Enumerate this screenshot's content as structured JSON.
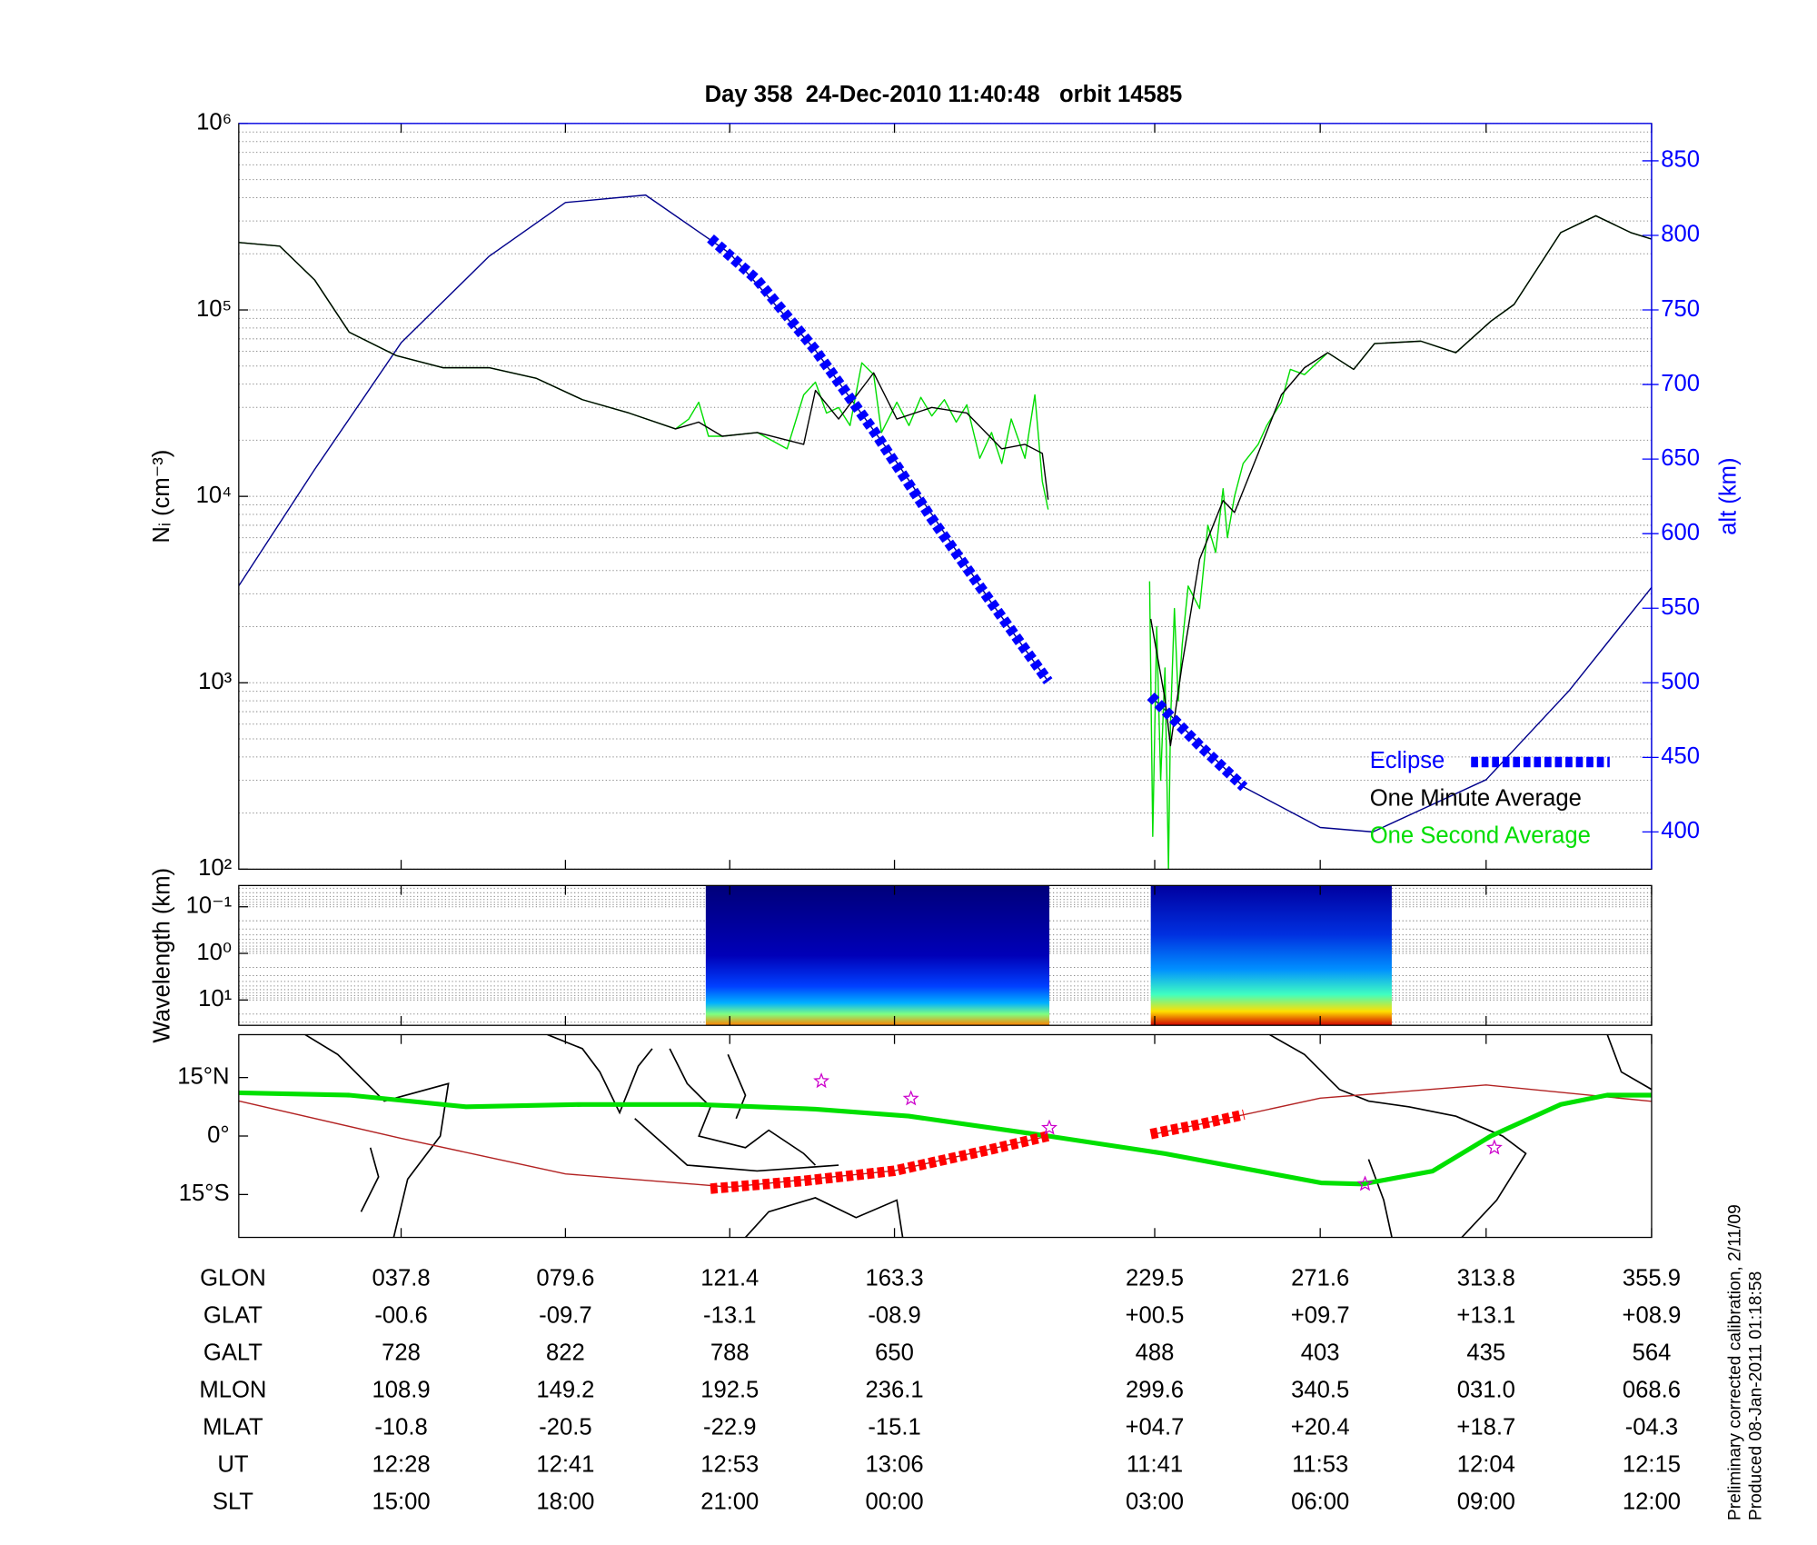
{
  "chart_data": [
    {
      "type": "line",
      "title": "Day 358  24-Dec-2010 11:40:48   orbit 14585",
      "ylabel": "Nᵢ (cm⁻³)",
      "y2label": "alt (km)",
      "y2_color": "#0000ff",
      "xlim": [
        -3.5,
        355.9
      ],
      "xticks": [
        37.8,
        79.6,
        121.4,
        163.3,
        229.5,
        271.6,
        313.8,
        355.9
      ],
      "ylim": [
        100,
        1000000
      ],
      "ylog": true,
      "grid": true,
      "yticks": [
        {
          "value": 100,
          "label": "10²"
        },
        {
          "value": 1000,
          "label": "10³"
        },
        {
          "value": 10000,
          "label": "10⁴"
        },
        {
          "value": 100000,
          "label": "10⁵"
        },
        {
          "value": 1000000,
          "label": "10⁶"
        }
      ],
      "y2lim": [
        375,
        875
      ],
      "y2ticks": [
        400,
        450,
        500,
        550,
        600,
        650,
        700,
        750,
        800,
        850
      ],
      "legend": "lower right",
      "series": [
        {
          "name": "Eclipse",
          "color": "#0000ff",
          "axis": "y2",
          "linestyle": "dashed",
          "linewidth": "thick",
          "x": [
            116.5,
            128.4,
            143.2,
            158,
            172.8,
            187.6,
            202.4,
            214.3,
            228.5,
            240.9,
            252.2
          ],
          "values": [
            798,
            770,
            723,
            669,
            610,
            555,
            501,
            null,
            491,
            458,
            430
          ]
        },
        {
          "name": "One Minute Average",
          "color": "#000000",
          "linestyle": "solid",
          "linewidth": "thin",
          "x": [
            -3.5,
            6.9,
            15.8,
            24.6,
            36.5,
            48.4,
            60.2,
            72.1,
            83.9,
            95.8,
            107.6,
            113.5,
            119.5,
            128.4,
            140.2,
            143.2,
            149.1,
            158,
            163.9,
            172.8,
            181.7,
            190.6,
            196.5,
            200.9,
            202.4,
            214.3,
            228.5,
            232.1,
            233.5,
            236.5,
            240.9,
            246.9,
            249.8,
            255.8,
            261.7,
            267.6,
            273.5,
            280.1,
            285.4,
            297.2,
            306.1,
            315,
            320.9,
            332.8,
            341.7,
            350.6,
            355.9
          ],
          "values": [
            230000,
            220000,
            145000,
            76000,
            57000,
            49000,
            49000,
            43000,
            33000,
            28000,
            23000,
            25000,
            21000,
            22000,
            19000,
            37000,
            26000,
            46000,
            26000,
            30000,
            28000,
            18000,
            19000,
            17000,
            9600,
            null,
            2200,
            820,
            460,
            1260,
            4600,
            9500,
            8200,
            17000,
            35000,
            49000,
            59000,
            48000,
            66000,
            68000,
            59000,
            87000,
            107000,
            260000,
            320000,
            260000,
            240000
          ]
        },
        {
          "name": "One Second Average",
          "color": "#00dd00",
          "linestyle": "solid",
          "linewidth": "thin",
          "x": [
            -3.5,
            6.9,
            15.8,
            24.6,
            36.5,
            48.4,
            60.2,
            72.1,
            83.9,
            95.8,
            107.6,
            111,
            113.5,
            116,
            119.5,
            128.4,
            136,
            140.2,
            143.2,
            146,
            149.1,
            152,
            155,
            158,
            160,
            163.9,
            167,
            170,
            172.8,
            176,
            179,
            181.7,
            185,
            188,
            190.6,
            193,
            196.5,
            199,
            200.9,
            202.4,
            214.3,
            228.2,
            229,
            230,
            231,
            232.1,
            233,
            233.5,
            234.5,
            235.5,
            236.5,
            238,
            240.9,
            243,
            245,
            246.9,
            248,
            249.8,
            252,
            255.8,
            258,
            261.7,
            264,
            267.6,
            273.5,
            280.1,
            285.4,
            297.2,
            306.1,
            315,
            320.9,
            332.8,
            341.7,
            350.6,
            355.9
          ],
          "values": [
            230000,
            220000,
            145000,
            76000,
            57000,
            49000,
            49000,
            43000,
            33000,
            28000,
            23000,
            26000,
            32000,
            21000,
            21000,
            22000,
            18000,
            35000,
            41000,
            28000,
            30000,
            24000,
            52000,
            45000,
            22000,
            32000,
            24000,
            34000,
            27000,
            33000,
            25000,
            31000,
            16000,
            22000,
            15000,
            26000,
            16000,
            35000,
            12000,
            8500,
            null,
            3500,
            150,
            2000,
            300,
            1200,
            100,
            600,
            2500,
            800,
            1600,
            3300,
            2500,
            7000,
            5000,
            11000,
            6000,
            10000,
            15000,
            19000,
            24000,
            32000,
            48000,
            45000,
            59000,
            48000,
            66000,
            68000,
            59000,
            87000,
            107000,
            260000,
            320000,
            260000,
            240000
          ]
        },
        {
          "color": "#00008b",
          "axis": "y2",
          "linestyle": "solid",
          "linewidth": "thin",
          "x": [
            -3.5,
            15.8,
            37.8,
            60.2,
            79.6,
            100,
            121.4,
            143.2,
            163.3,
            187.6,
            202.4,
            214.3,
            228.5,
            252.2,
            271.6,
            285,
            313.8,
            335,
            355.9
          ],
          "values": [
            565,
            643,
            728,
            786,
            822,
            827,
            788,
            723,
            650,
            555,
            501,
            null,
            491,
            430,
            403,
            400,
            435,
            495,
            564
          ]
        }
      ]
    },
    {
      "type": "spectrogram",
      "ylabel": "Wavelength (km)",
      "xlim": [
        -3.5,
        355.9
      ],
      "xticks": [
        37.8,
        79.6,
        121.4,
        163.3,
        229.5,
        271.6,
        313.8,
        355.9
      ],
      "ylim": [
        0.035,
        35
      ],
      "ylog": true,
      "yreversed": true,
      "grid": true,
      "yticks": [
        {
          "value": 0.1,
          "label": "10⁻¹"
        },
        {
          "value": 1,
          "label": "10⁰"
        },
        {
          "value": 10,
          "label": "10¹"
        }
      ],
      "segments": [
        [
          115.3,
          202.7
        ],
        [
          228.5,
          289.8
        ]
      ]
    },
    {
      "type": "map",
      "xlim": [
        -3.5,
        355.9
      ],
      "xticks": [
        37.8,
        79.6,
        121.4,
        163.3,
        229.5,
        271.6,
        313.8,
        355.9
      ],
      "ylim": [
        -26,
        26
      ],
      "yticks": [
        {
          "value": -15,
          "label": "15°S"
        },
        {
          "value": 0,
          "label": "0°"
        },
        {
          "value": 15,
          "label": "15°N"
        }
      ],
      "series": [
        {
          "color": "#b22222",
          "linestyle": "solid",
          "linewidth": "thin",
          "x": [
            -3.5,
            37.8,
            79.6,
            121.4,
            163.3,
            202.4,
            214.3,
            229.5,
            271.6,
            313.8,
            355.9
          ],
          "values": [
            9,
            -0.6,
            -9.7,
            -13.1,
            -8.9,
            0,
            null,
            0.5,
            9.7,
            13.1,
            8.9
          ]
        },
        {
          "color": "#00e000",
          "linestyle": "solid",
          "linewidth": "thick",
          "x": [
            -3.5,
            24.6,
            54.3,
            83.9,
            113.5,
            143.2,
            166.9,
            202.4,
            232.1,
            271.8,
            282.4,
            300.2,
            315,
            332.8,
            344.6,
            355.9
          ],
          "values": [
            11.1,
            10.5,
            7.5,
            8.1,
            8.1,
            6.9,
            5.1,
            0,
            -4.5,
            -12,
            -12.3,
            -9,
            0,
            8.1,
            10.5,
            10.5
          ]
        },
        {
          "color": "#ff0000",
          "linestyle": "dashed",
          "linewidth": "thick",
          "x": [
            116.5,
            140.2,
            163.3,
            187.6,
            202.4,
            214.3,
            228.5,
            240.9,
            252.2
          ],
          "values": [
            -13.5,
            -11.5,
            -8.9,
            -3.5,
            0,
            null,
            0.5,
            3,
            5.5
          ]
        },
        {
          "color": "#cc00cc",
          "marker": "star",
          "x": [
            144.7,
            167.5,
            202.7,
            283,
            315.9
          ],
          "values": [
            14.1,
            9.6,
            2.1,
            -12.3,
            -3
          ]
        }
      ]
    }
  ],
  "table": {
    "rows": [
      {
        "label": "GLON",
        "values": [
          "037.8",
          "079.6",
          "121.4",
          "163.3",
          "229.5",
          "271.6",
          "313.8",
          "355.9"
        ]
      },
      {
        "label": "GLAT",
        "values": [
          "-00.6",
          "-09.7",
          "-13.1",
          "-08.9",
          "+00.5",
          "+09.7",
          "+13.1",
          "+08.9"
        ]
      },
      {
        "label": "GALT",
        "values": [
          "728",
          "822",
          "788",
          "650",
          "488",
          "403",
          "435",
          "564"
        ]
      },
      {
        "label": "MLON",
        "values": [
          "108.9",
          "149.2",
          "192.5",
          "236.1",
          "299.6",
          "340.5",
          "031.0",
          "068.6"
        ]
      },
      {
        "label": "MLAT",
        "values": [
          "-10.8",
          "-20.5",
          "-22.9",
          "-15.1",
          "+04.7",
          "+20.4",
          "+18.7",
          "-04.3"
        ]
      },
      {
        "label": "UT",
        "values": [
          "12:28",
          "12:41",
          "12:53",
          "13:06",
          "11:41",
          "11:53",
          "12:04",
          "12:15"
        ]
      },
      {
        "label": "SLT",
        "values": [
          "15:00",
          "18:00",
          "21:00",
          "00:00",
          "03:00",
          "06:00",
          "09:00",
          "12:00"
        ]
      }
    ]
  },
  "notes": [
    "Preliminary corrected calibration, 2/11/09",
    "Produced 08-Jan-2011 01:18:58"
  ]
}
